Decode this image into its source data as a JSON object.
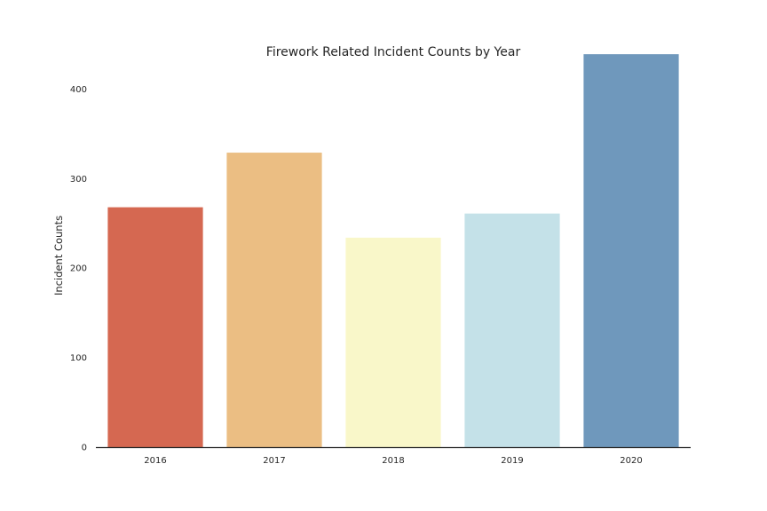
{
  "chart_data": {
    "type": "bar",
    "title": "Firework Related Incident Counts by Year",
    "xlabel": "",
    "ylabel": "Incident Counts",
    "categories": [
      "2016",
      "2017",
      "2018",
      "2019",
      "2020"
    ],
    "values": [
      268,
      329,
      234,
      261,
      439
    ],
    "colors": [
      "#d56851",
      "#ebbe83",
      "#f9f7c9",
      "#c4e1e8",
      "#6f98bc"
    ],
    "ylim": [
      0,
      450
    ],
    "yticks": [
      0,
      100,
      200,
      300,
      400
    ],
    "grid": false,
    "legend": "none"
  }
}
